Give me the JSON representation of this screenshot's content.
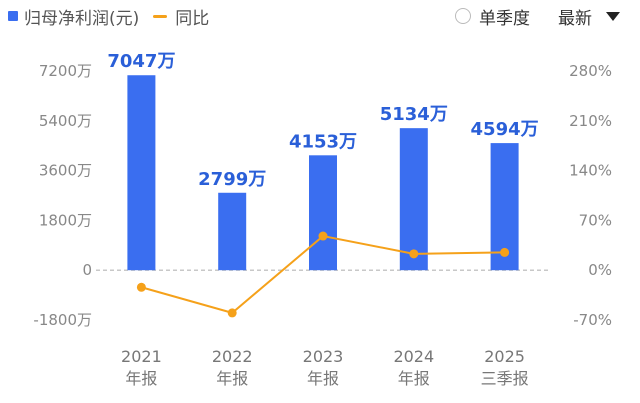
{
  "legend": {
    "bar_label": "归母净利润(元)",
    "line_label": "同比"
  },
  "controls": {
    "quarter_label": "单季度",
    "dropdown_label": "最新"
  },
  "colors": {
    "bar": "#3a6ef0",
    "line": "#f5a11a",
    "label": "#2a5fd8"
  },
  "chart_data": {
    "type": "bar",
    "categories": [
      [
        "2021",
        "年报"
      ],
      [
        "2022",
        "年报"
      ],
      [
        "2023",
        "年报"
      ],
      [
        "2024",
        "年报"
      ],
      [
        "2025",
        "三季报"
      ]
    ],
    "series": [
      {
        "name": "归母净利润(元)",
        "type": "bar",
        "axis": "left",
        "values": [
          7047,
          2799,
          4153,
          5134,
          4594
        ],
        "labels": [
          "7047万",
          "2799万",
          "4153万",
          "5134万",
          "4594万"
        ]
      },
      {
        "name": "同比",
        "type": "line",
        "axis": "right",
        "values": [
          -24,
          -60,
          48,
          23,
          25
        ]
      }
    ],
    "left_axis": {
      "ticks": [
        7200,
        5400,
        3600,
        1800,
        0,
        -1800
      ],
      "tick_labels": [
        "7200万",
        "5400万",
        "3600万",
        "1800万",
        "0",
        "-1800万"
      ],
      "range": [
        -1800,
        7200
      ]
    },
    "right_axis": {
      "ticks": [
        280,
        210,
        140,
        70,
        0,
        -70
      ],
      "tick_labels": [
        "280%",
        "210%",
        "140%",
        "70%",
        "0%",
        "-70%"
      ],
      "range": [
        -70,
        280
      ]
    },
    "grid": true,
    "legend_position": "top-left"
  }
}
